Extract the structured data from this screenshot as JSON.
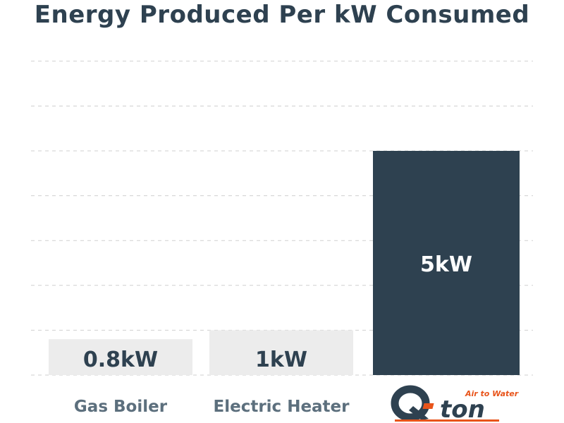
{
  "chart_data": {
    "type": "bar",
    "title": "Energy Produced Per kW Consumed",
    "categories": [
      "Gas Boiler",
      "Electric Heater",
      "Q-ton"
    ],
    "values": [
      0.8,
      1,
      5
    ],
    "value_labels": [
      "0.8kW",
      "1kW",
      "5kW"
    ],
    "category_labels": [
      "Gas Boiler",
      "Electric Heater",
      ""
    ],
    "ylim": [
      0,
      7.5
    ],
    "grid": true,
    "colors": [
      "#ececec",
      "#ececec",
      "#2e4150"
    ],
    "label_colors": [
      "#2e4150",
      "#2e4150",
      "#ffffff"
    ],
    "category_color": "#5c6f7d",
    "logo": {
      "name": "Q-ton",
      "tagline": "Air to Water",
      "colors": {
        "main": "#2e4150",
        "accent": "#e8541a"
      }
    }
  }
}
